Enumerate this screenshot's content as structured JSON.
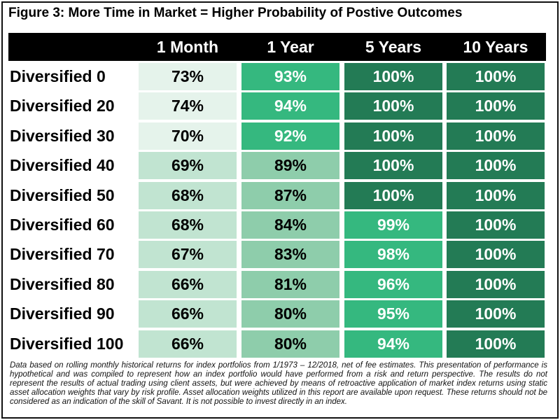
{
  "title": "Figure 3: More Time in Market = Higher Probability of Postive Outcomes",
  "colors": {
    "header_bg": "#000000",
    "c1": "#e5f3eb",
    "c2": "#c1e4d1",
    "c3": "#8ecdab",
    "c4": "#35b87f",
    "c5": "#237b55"
  },
  "chart_data": {
    "type": "table",
    "columns": [
      "1 Month",
      "1 Year",
      "5 Years",
      "10 Years"
    ],
    "rows": [
      {
        "label": "Diversified 0",
        "values": [
          "73%",
          "93%",
          "100%",
          "100%"
        ],
        "shades": [
          "c1",
          "c4",
          "c5",
          "c5"
        ]
      },
      {
        "label": "Diversified 20",
        "values": [
          "74%",
          "94%",
          "100%",
          "100%"
        ],
        "shades": [
          "c1",
          "c4",
          "c5",
          "c5"
        ]
      },
      {
        "label": "Diversified 30",
        "values": [
          "70%",
          "92%",
          "100%",
          "100%"
        ],
        "shades": [
          "c1",
          "c4",
          "c5",
          "c5"
        ]
      },
      {
        "label": "Diversified 40",
        "values": [
          "69%",
          "89%",
          "100%",
          "100%"
        ],
        "shades": [
          "c2",
          "c3",
          "c5",
          "c5"
        ]
      },
      {
        "label": "Diversified 50",
        "values": [
          "68%",
          "87%",
          "100%",
          "100%"
        ],
        "shades": [
          "c2",
          "c3",
          "c5",
          "c5"
        ]
      },
      {
        "label": "Diversified 60",
        "values": [
          "68%",
          "84%",
          "99%",
          "100%"
        ],
        "shades": [
          "c2",
          "c3",
          "c4",
          "c5"
        ]
      },
      {
        "label": "Diversified 70",
        "values": [
          "67%",
          "83%",
          "98%",
          "100%"
        ],
        "shades": [
          "c2",
          "c3",
          "c4",
          "c5"
        ]
      },
      {
        "label": "Diversified 80",
        "values": [
          "66%",
          "81%",
          "96%",
          "100%"
        ],
        "shades": [
          "c2",
          "c3",
          "c4",
          "c5"
        ]
      },
      {
        "label": "Diversified 90",
        "values": [
          "66%",
          "80%",
          "95%",
          "100%"
        ],
        "shades": [
          "c2",
          "c3",
          "c4",
          "c5"
        ]
      },
      {
        "label": "Diversified 100",
        "values": [
          "66%",
          "80%",
          "94%",
          "100%"
        ],
        "shades": [
          "c2",
          "c3",
          "c4",
          "c5"
        ]
      }
    ]
  },
  "footnote": "Data based on rolling monthly historical returns for index portfolios from 1/1973 – 12/2018, net of fee estimates. This presentation of performance is hypothetical and was compiled to represent how an index portfolio would have performed from a risk and return perspective. The results do not represent the results of actual trading using client assets, but were achieved by means of retroactive application of market index returns using static asset allocation weights that vary by risk profile. Asset allocation weights utilized in this report are available upon request. These returns should not be considered as an indication of the skill of Savant. It is not possible to invest directly in an index."
}
